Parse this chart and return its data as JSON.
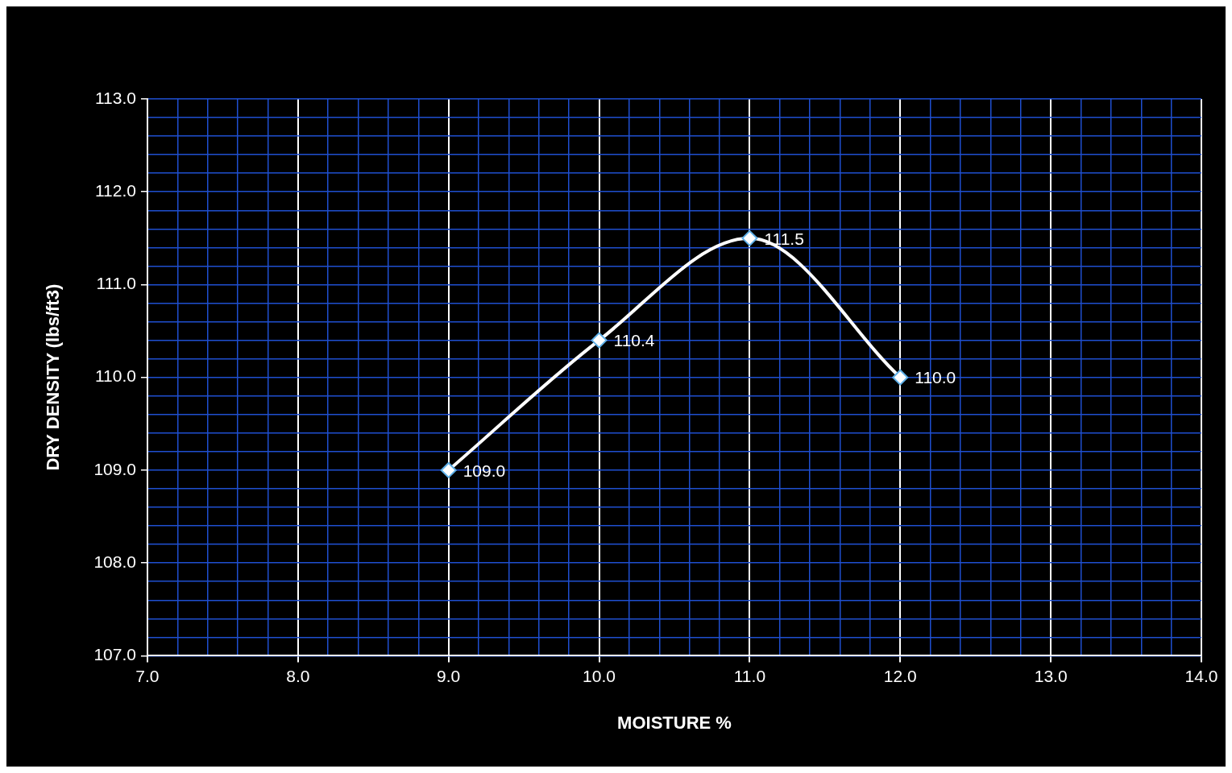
{
  "chart_data": {
    "type": "line",
    "xlabel": "MOISTURE %",
    "ylabel": "DRY DENSITY (lbs/ft3)",
    "x": [
      9,
      10,
      11,
      12
    ],
    "series": [
      {
        "color": "#ffffff",
        "values": [
          109.0,
          110.4,
          111.5,
          110.0
        ],
        "value_labels": [
          "109.0",
          "110.4",
          "111.5",
          "110.0"
        ]
      }
    ],
    "xlim": [
      7,
      14
    ],
    "xticks": [
      {
        "value": 7,
        "label": "7.0"
      },
      {
        "value": 7.2,
        "label": null
      },
      {
        "value": 7.4,
        "label": null
      },
      {
        "value": 7.6,
        "label": null
      },
      {
        "value": 7.8,
        "label": null
      },
      {
        "value": 8,
        "label": "8.0"
      },
      {
        "value": 8.2,
        "label": null
      },
      {
        "value": 8.4,
        "label": null
      },
      {
        "value": 8.6,
        "label": null
      },
      {
        "value": 8.8,
        "label": null
      },
      {
        "value": 9,
        "label": "9.0"
      },
      {
        "value": 9.2,
        "label": null
      },
      {
        "value": 9.4,
        "label": null
      },
      {
        "value": 9.6,
        "label": null
      },
      {
        "value": 9.8,
        "label": null
      },
      {
        "value": 10,
        "label": "10.0"
      },
      {
        "value": 10.2,
        "label": null
      },
      {
        "value": 10.4,
        "label": null
      },
      {
        "value": 10.6,
        "label": null
      },
      {
        "value": 10.8,
        "label": null
      },
      {
        "value": 11,
        "label": "11.0"
      },
      {
        "value": 11.2,
        "label": null
      },
      {
        "value": 11.4,
        "label": null
      },
      {
        "value": 11.6,
        "label": null
      },
      {
        "value": 11.8,
        "label": null
      },
      {
        "value": 12,
        "label": "12.0"
      },
      {
        "value": 12.2,
        "label": null
      },
      {
        "value": 12.4,
        "label": null
      },
      {
        "value": 12.6,
        "label": null
      },
      {
        "value": 12.8,
        "label": null
      },
      {
        "value": 13,
        "label": "13.0"
      },
      {
        "value": 13.2,
        "label": null
      },
      {
        "value": 13.4,
        "label": null
      },
      {
        "value": 13.6,
        "label": null
      },
      {
        "value": 13.8,
        "label": null
      },
      {
        "value": 14,
        "label": "14.0"
      }
    ],
    "ylim": [
      107,
      113
    ],
    "yticks": [
      {
        "value": 107,
        "label": "107.0"
      },
      {
        "value": 107.2,
        "label": null
      },
      {
        "value": 107.4,
        "label": null
      },
      {
        "value": 107.6,
        "label": null
      },
      {
        "value": 107.8,
        "label": null
      },
      {
        "value": 108,
        "label": "108.0"
      },
      {
        "value": 108.2,
        "label": null
      },
      {
        "value": 108.4,
        "label": null
      },
      {
        "value": 108.6,
        "label": null
      },
      {
        "value": 108.8,
        "label": null
      },
      {
        "value": 109,
        "label": "109.0"
      },
      {
        "value": 109.2,
        "label": null
      },
      {
        "value": 109.4,
        "label": null
      },
      {
        "value": 109.6,
        "label": null
      },
      {
        "value": 109.8,
        "label": null
      },
      {
        "value": 110,
        "label": "110.0"
      },
      {
        "value": 110.2,
        "label": null
      },
      {
        "value": 110.4,
        "label": null
      },
      {
        "value": 110.6,
        "label": null
      },
      {
        "value": 110.8,
        "label": null
      },
      {
        "value": 111,
        "label": "111.0"
      },
      {
        "value": 111.2,
        "label": null
      },
      {
        "value": 111.4,
        "label": null
      },
      {
        "value": 111.6,
        "label": null
      },
      {
        "value": 111.8,
        "label": null
      },
      {
        "value": 112,
        "label": "112.0"
      },
      {
        "value": 112.2,
        "label": null
      },
      {
        "value": 112.4,
        "label": null
      },
      {
        "value": 112.6,
        "label": null
      },
      {
        "value": 112.8,
        "label": null
      },
      {
        "value": 113,
        "label": "113.0"
      }
    ],
    "grid": true,
    "marker": "diamond",
    "line_style": "solid"
  }
}
